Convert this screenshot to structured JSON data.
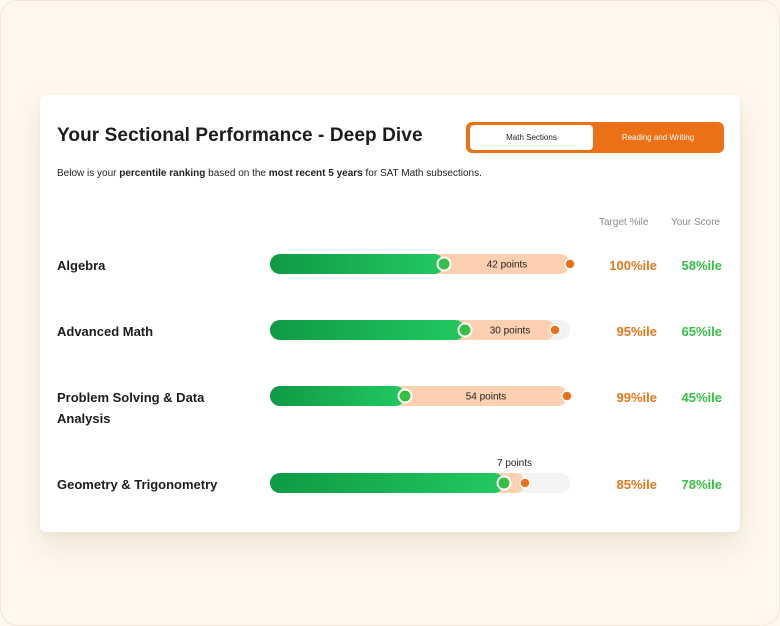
{
  "header": {
    "title": "Your Sectional Performance - Deep Dive",
    "tabs": [
      {
        "label": "Math Sections",
        "active": true
      },
      {
        "label": "Reading and Writing",
        "active": false
      }
    ],
    "subtitle": {
      "prefix": "Below is your ",
      "bold1": "percentile ranking",
      "mid": " based on the ",
      "bold2": "most recent 5 years",
      "suffix": " for SAT Math subsections."
    }
  },
  "columns": {
    "target": "Target %ile",
    "score": "Your Score"
  },
  "colors": {
    "score_green": "#35c043",
    "target_orange": "#e2771e",
    "gap_fill": "#fcd0b1",
    "track": "#f3f3f3",
    "accent": "#ec7016"
  },
  "chart_data": {
    "type": "bar",
    "categories": [
      "Algebra",
      "Advanced Math",
      "Problem Solving & Data Analysis",
      "Geometry & Trigonometry"
    ],
    "series": [
      {
        "name": "Target %ile",
        "values": [
          100,
          95,
          99,
          85
        ]
      },
      {
        "name": "Your Score",
        "values": [
          58,
          65,
          45,
          78
        ]
      }
    ],
    "gap_labels": [
      "42 points",
      "30 points",
      "54 points",
      "7 points"
    ],
    "target_labels": [
      "100%ile",
      "95%ile",
      "99%ile",
      "85%ile"
    ],
    "score_labels": [
      "58%ile",
      "65%ile",
      "45%ile",
      "78%ile"
    ],
    "xlim": [
      0,
      100
    ]
  }
}
